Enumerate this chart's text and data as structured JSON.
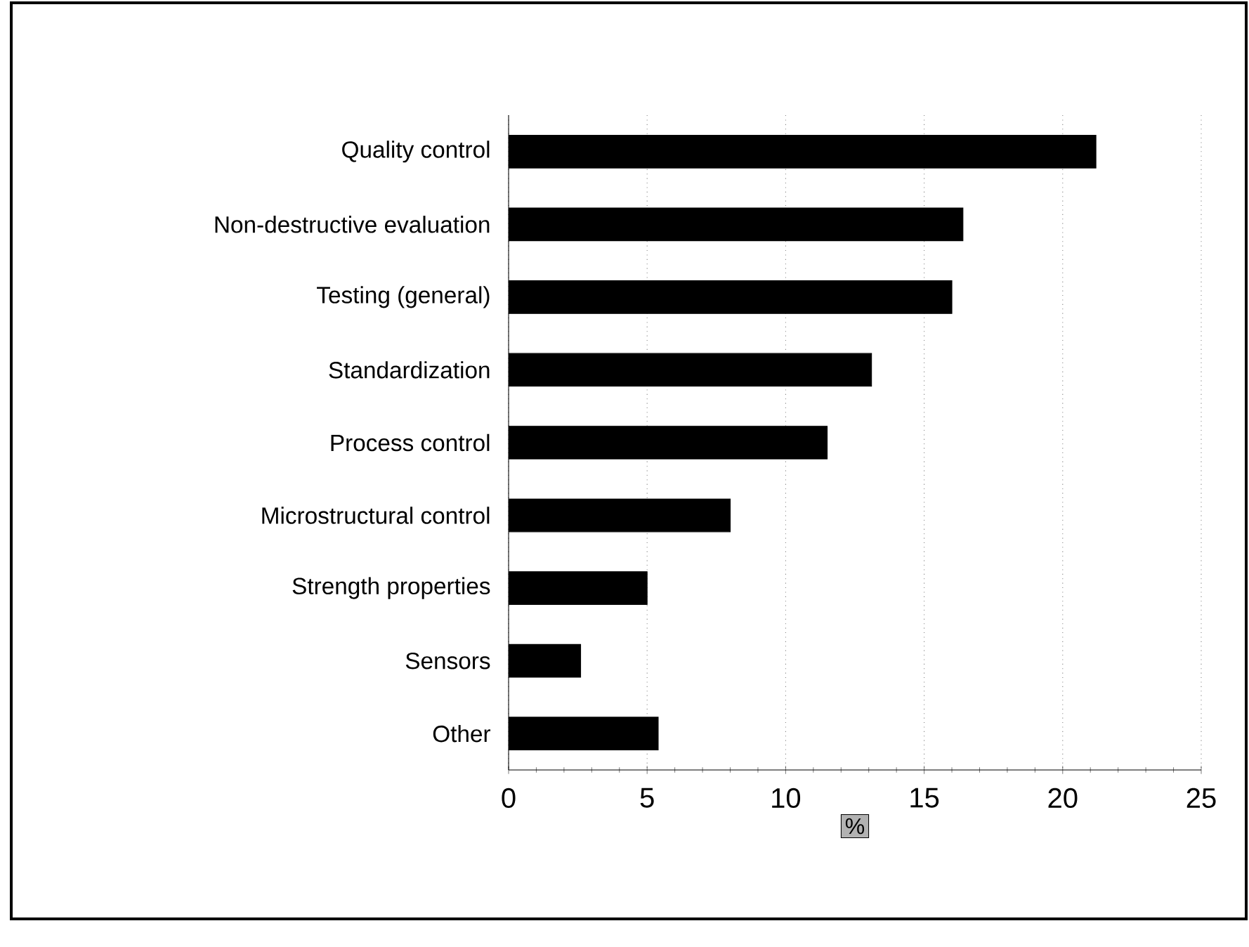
{
  "chart_data": {
    "type": "bar",
    "orientation": "horizontal",
    "categories": [
      "Quality control",
      "Non-destructive evaluation",
      "Testing (general)",
      "Standardization",
      "Process control",
      "Microstructural control",
      "Strength properties",
      "Sensors",
      "Other"
    ],
    "values": [
      21.2,
      16.4,
      16.0,
      13.1,
      11.5,
      8.0,
      5.0,
      2.6,
      5.4
    ],
    "color": "#000000",
    "xlabel": "%",
    "xlim": [
      0,
      25
    ],
    "xticks": [
      0,
      5,
      10,
      15,
      20,
      25
    ],
    "grid": "x"
  }
}
